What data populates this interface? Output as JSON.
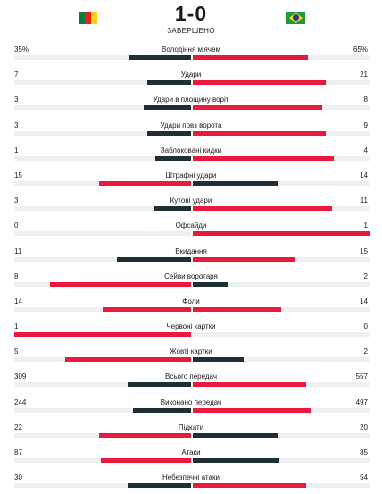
{
  "match": {
    "score": "1-0",
    "status": "ЗАВЕРШЕНО",
    "home_flag": "cameroon-flag",
    "away_flag": "brazil-flag"
  },
  "colors": {
    "leader": "#e8193c",
    "trailer": "#1f2f36",
    "track": "#eeeff1"
  },
  "stats": [
    {
      "name": "Володіння м'ячем",
      "home": "35%",
      "away": "65%",
      "home_share": 0.35,
      "away_share": 0.65
    },
    {
      "name": "Удари",
      "home": "7",
      "away": "21",
      "home_share": 0.25,
      "away_share": 0.75
    },
    {
      "name": "Удари в площину воріт",
      "home": "3",
      "away": "8",
      "home_share": 0.27,
      "away_share": 0.73
    },
    {
      "name": "Удари повз ворота",
      "home": "3",
      "away": "9",
      "home_share": 0.25,
      "away_share": 0.75
    },
    {
      "name": "Заблоковані кидки",
      "home": "1",
      "away": "4",
      "home_share": 0.2,
      "away_share": 0.8
    },
    {
      "name": "Штрафні удари",
      "home": "15",
      "away": "14",
      "home_share": 0.52,
      "away_share": 0.48
    },
    {
      "name": "Кутові удари",
      "home": "3",
      "away": "11",
      "home_share": 0.21,
      "away_share": 0.79
    },
    {
      "name": "Офсайди",
      "home": "0",
      "away": "1",
      "home_share": 0.0,
      "away_share": 1.0
    },
    {
      "name": "Вкидання",
      "home": "11",
      "away": "15",
      "home_share": 0.42,
      "away_share": 0.58
    },
    {
      "name": "Сейви воротаря",
      "home": "8",
      "away": "2",
      "home_share": 0.8,
      "away_share": 0.2
    },
    {
      "name": "Фоли",
      "home": "14",
      "away": "14",
      "home_share": 0.5,
      "away_share": 0.5
    },
    {
      "name": "Червоні картки",
      "home": "1",
      "away": "0",
      "home_share": 1.0,
      "away_share": 0.0
    },
    {
      "name": "Жовті картки",
      "home": "5",
      "away": "2",
      "home_share": 0.71,
      "away_share": 0.29
    },
    {
      "name": "Всього передач",
      "home": "309",
      "away": "557",
      "home_share": 0.36,
      "away_share": 0.64
    },
    {
      "name": "Виконано передач",
      "home": "244",
      "away": "497",
      "home_share": 0.33,
      "away_share": 0.67
    },
    {
      "name": "Підкати",
      "home": "22",
      "away": "20",
      "home_share": 0.52,
      "away_share": 0.48
    },
    {
      "name": "Атаки",
      "home": "87",
      "away": "85",
      "home_share": 0.51,
      "away_share": 0.49
    },
    {
      "name": "Небезпечні атаки",
      "home": "30",
      "away": "54",
      "home_share": 0.36,
      "away_share": 0.64
    }
  ]
}
